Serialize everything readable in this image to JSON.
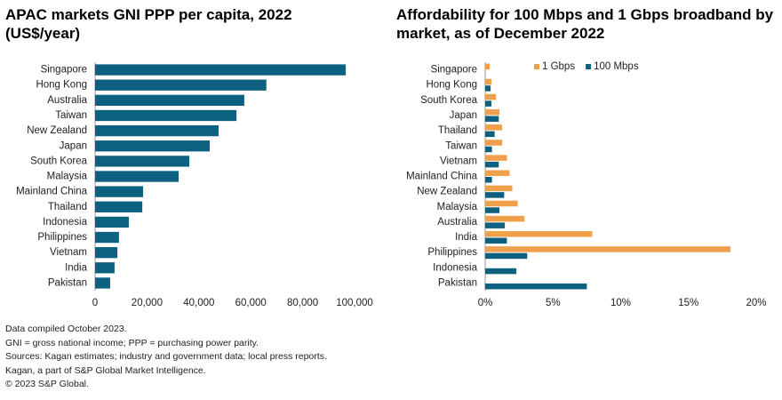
{
  "chart_data": [
    {
      "type": "hbar",
      "title": "APAC markets GNI PPP per capita, 2022 (US$/year)",
      "categories": [
        "Singapore",
        "Hong Kong",
        "Australia",
        "Taiwan",
        "New Zealand",
        "Japan",
        "South Korea",
        "Malaysia",
        "Mainland China",
        "Thailand",
        "Indonesia",
        "Philippines",
        "Vietnam",
        "India",
        "Pakistan"
      ],
      "values": [
        96600,
        66000,
        57500,
        54500,
        47600,
        44200,
        36300,
        32200,
        18500,
        18200,
        13000,
        9200,
        8600,
        7500,
        5800
      ],
      "color": "#0d6180",
      "xlim": [
        0,
        100000
      ],
      "xticks": [
        0,
        {
          "value": 20000,
          "label": "20,000"
        },
        {
          "value": 40000,
          "label": "40,000"
        },
        {
          "value": 60000,
          "label": "60,000"
        },
        {
          "value": 80000,
          "label": "80,000"
        },
        {
          "value": 100000,
          "label": "100,000"
        }
      ]
    },
    {
      "type": "hbar",
      "title": "Affordability for 100 Mbps and 1 Gbps broadband by market, as of December 2022",
      "categories": [
        "Singapore",
        "Hong Kong",
        "South Korea",
        "Japan",
        "Thailand",
        "Taiwan",
        "Vietnam",
        "Mainland China",
        "New Zealand",
        "Malaysia",
        "Australia",
        "India",
        "Philippines",
        "Indonesia",
        "Pakistan"
      ],
      "series": [
        {
          "name": "1 Gbps",
          "color": "#f0a04b",
          "values": [
            0.33,
            0.46,
            0.8,
            1.05,
            1.25,
            1.25,
            1.6,
            1.8,
            2.0,
            2.4,
            2.9,
            7.9,
            18.1,
            null,
            null
          ]
        },
        {
          "name": "100 Mbps",
          "color": "#0d6180",
          "values": [
            null,
            0.4,
            0.46,
            1.0,
            0.7,
            0.5,
            1.0,
            0.5,
            1.4,
            1.05,
            1.45,
            1.6,
            3.1,
            2.3,
            7.5
          ]
        }
      ],
      "legend": "top",
      "xlim": [
        0,
        20
      ],
      "xticks": [
        {
          "value": 0,
          "label": "0%"
        },
        {
          "value": 5,
          "label": "5%"
        },
        {
          "value": 10,
          "label": "10%"
        },
        {
          "value": 15,
          "label": "15%"
        },
        {
          "value": 20,
          "label": "20%"
        }
      ]
    }
  ],
  "notes": [
    "Data compiled October 2023.",
    "GNI = gross national income; PPP = purchasing power parity.",
    "Sources: Kagan estimates; industry and government data; local press reports.",
    "Kagan, a part of S&P Global Market Intelligence.",
    "© 2023 S&P Global."
  ]
}
